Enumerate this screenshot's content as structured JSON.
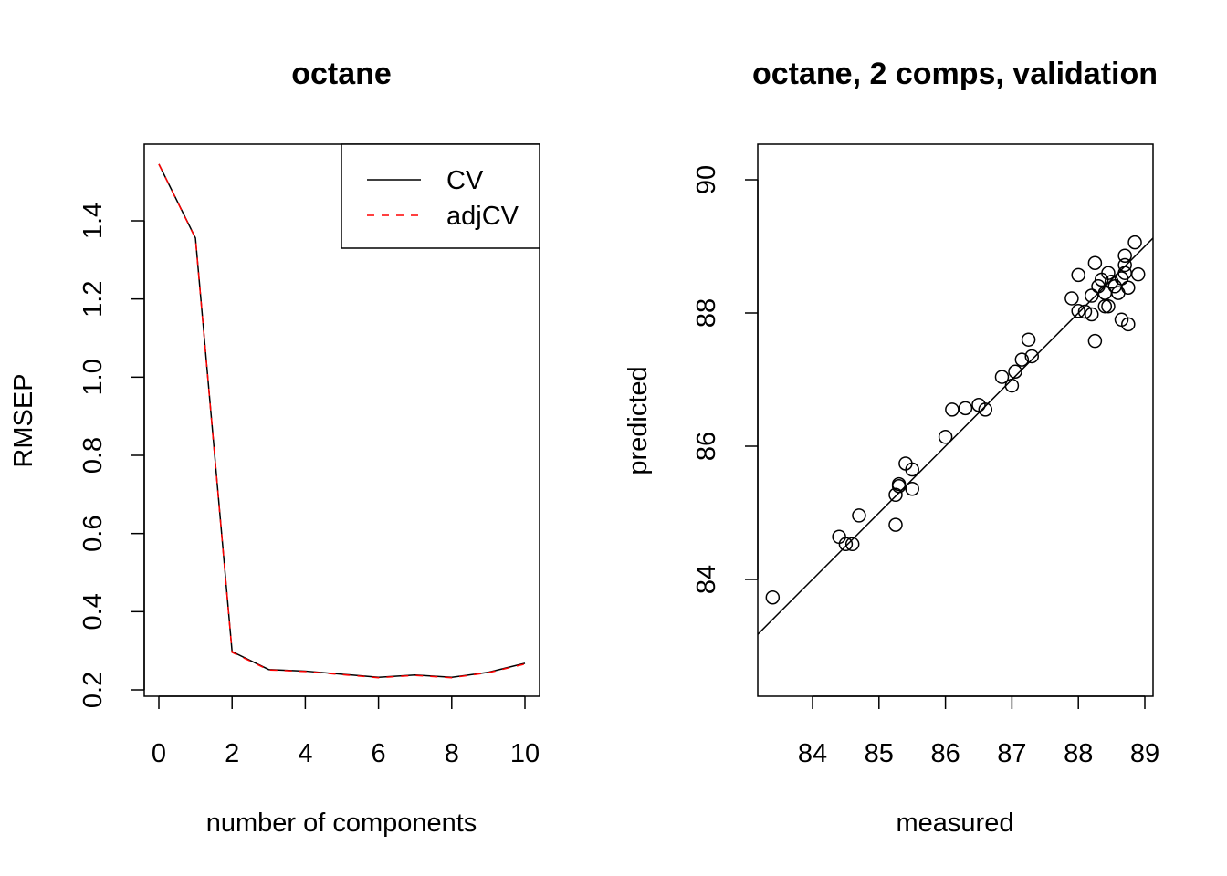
{
  "chart_data": [
    {
      "type": "line",
      "title": "octane",
      "xlabel": "number of components",
      "ylabel": "RMSEP",
      "xlim": [
        0,
        10
      ],
      "ylim": [
        0.2,
        1.6
      ],
      "x_ticks": [
        "0",
        "2",
        "4",
        "6",
        "8",
        "10"
      ],
      "y_ticks": [
        "0.2",
        "0.4",
        "0.6",
        "0.8",
        "1.0",
        "1.2",
        "1.4"
      ],
      "x": [
        0,
        1,
        2,
        3,
        4,
        5,
        6,
        7,
        8,
        9,
        10
      ],
      "series": [
        {
          "name": "CV",
          "color": "#000000",
          "style": "solid",
          "values": [
            1.545,
            1.356,
            0.298,
            0.252,
            0.248,
            0.24,
            0.232,
            0.238,
            0.232,
            0.245,
            0.268
          ]
        },
        {
          "name": "adjCV",
          "color": "#ff0000",
          "style": "dashed",
          "values": [
            1.545,
            1.355,
            0.296,
            0.251,
            0.247,
            0.239,
            0.231,
            0.237,
            0.231,
            0.244,
            0.266
          ]
        }
      ],
      "legend_position": "top-right",
      "grid": false
    },
    {
      "type": "scatter",
      "title": "octane, 2 comps, validation",
      "xlabel": "measured",
      "ylabel": "predicted",
      "xlim": [
        83.3,
        89.05
      ],
      "ylim": [
        82.4,
        90.55
      ],
      "x_ticks": [
        "84",
        "85",
        "86",
        "87",
        "88",
        "89"
      ],
      "y_ticks": [
        "84",
        "86",
        "88",
        "90"
      ],
      "reference_line": "y = x",
      "grid": false,
      "points": [
        [
          83.4,
          83.73
        ],
        [
          84.4,
          84.64
        ],
        [
          84.5,
          84.53
        ],
        [
          84.6,
          84.53
        ],
        [
          84.7,
          84.96
        ],
        [
          85.25,
          84.82
        ],
        [
          85.25,
          85.27
        ],
        [
          85.3,
          85.4
        ],
        [
          85.3,
          85.43
        ],
        [
          85.4,
          85.74
        ],
        [
          85.5,
          85.36
        ],
        [
          85.5,
          85.65
        ],
        [
          86.0,
          86.14
        ],
        [
          86.1,
          86.55
        ],
        [
          86.3,
          86.57
        ],
        [
          86.5,
          86.62
        ],
        [
          86.6,
          86.55
        ],
        [
          86.85,
          87.04
        ],
        [
          87.0,
          86.91
        ],
        [
          87.05,
          87.12
        ],
        [
          87.15,
          87.3
        ],
        [
          87.25,
          87.6
        ],
        [
          87.3,
          87.35
        ],
        [
          87.9,
          88.22
        ],
        [
          88.0,
          88.03
        ],
        [
          88.0,
          88.57
        ],
        [
          88.1,
          88.02
        ],
        [
          88.2,
          87.98
        ],
        [
          88.2,
          88.26
        ],
        [
          88.25,
          88.75
        ],
        [
          88.25,
          87.58
        ],
        [
          88.3,
          88.4
        ],
        [
          88.35,
          88.5
        ],
        [
          88.4,
          88.1
        ],
        [
          88.4,
          88.3
        ],
        [
          88.45,
          88.6
        ],
        [
          88.45,
          88.1
        ],
        [
          88.5,
          88.47
        ],
        [
          88.55,
          88.4
        ],
        [
          88.6,
          88.3
        ],
        [
          88.65,
          87.9
        ],
        [
          88.65,
          88.52
        ],
        [
          88.7,
          88.6
        ],
        [
          88.7,
          88.72
        ],
        [
          88.7,
          88.86
        ],
        [
          88.75,
          87.83
        ],
        [
          88.75,
          88.38
        ],
        [
          88.85,
          89.06
        ],
        [
          88.9,
          88.58
        ]
      ]
    }
  ]
}
